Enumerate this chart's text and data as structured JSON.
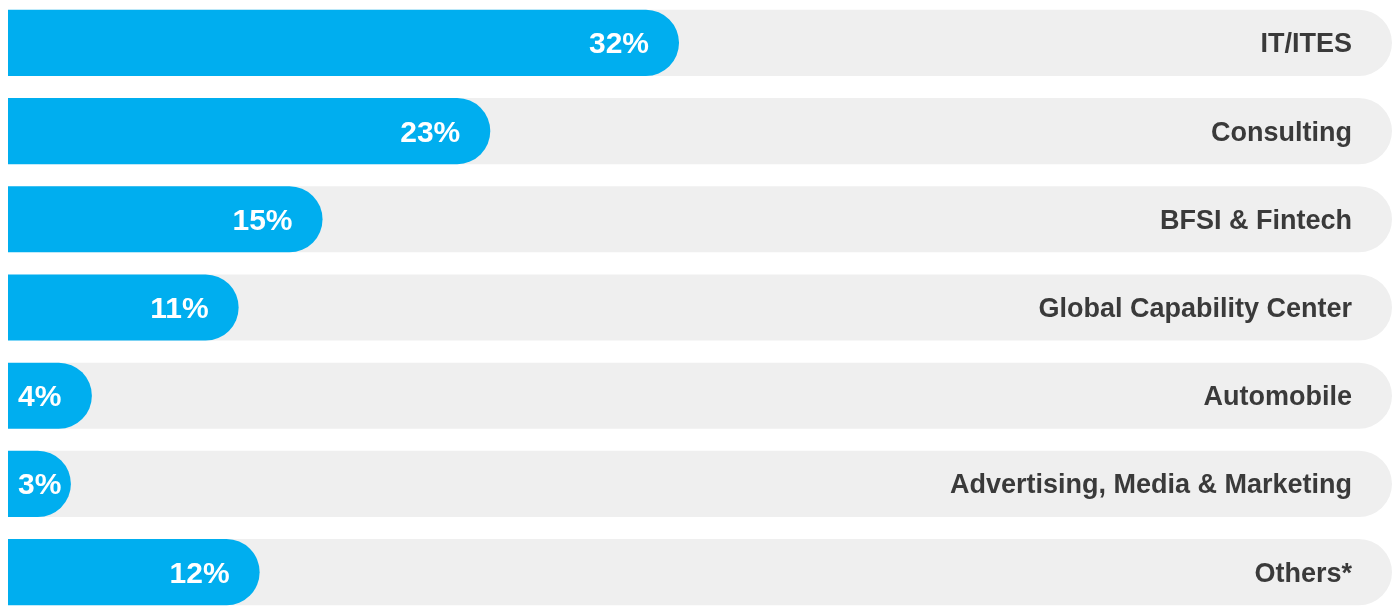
{
  "chart_data": {
    "type": "bar",
    "orientation": "horizontal",
    "categories": [
      "IT/ITES",
      "Consulting",
      "BFSI & Fintech",
      "Global Capability Center",
      "Automobile",
      "Advertising, Media & Marketing",
      "Others*"
    ],
    "values": [
      32,
      23,
      15,
      11,
      4,
      3,
      12
    ],
    "value_labels": [
      "32%",
      "23%",
      "15%",
      "11%",
      "4%",
      "3%",
      "12%"
    ],
    "color": "#00aeef",
    "xlim": [
      0,
      66
    ],
    "tick_labels": "y"
  }
}
